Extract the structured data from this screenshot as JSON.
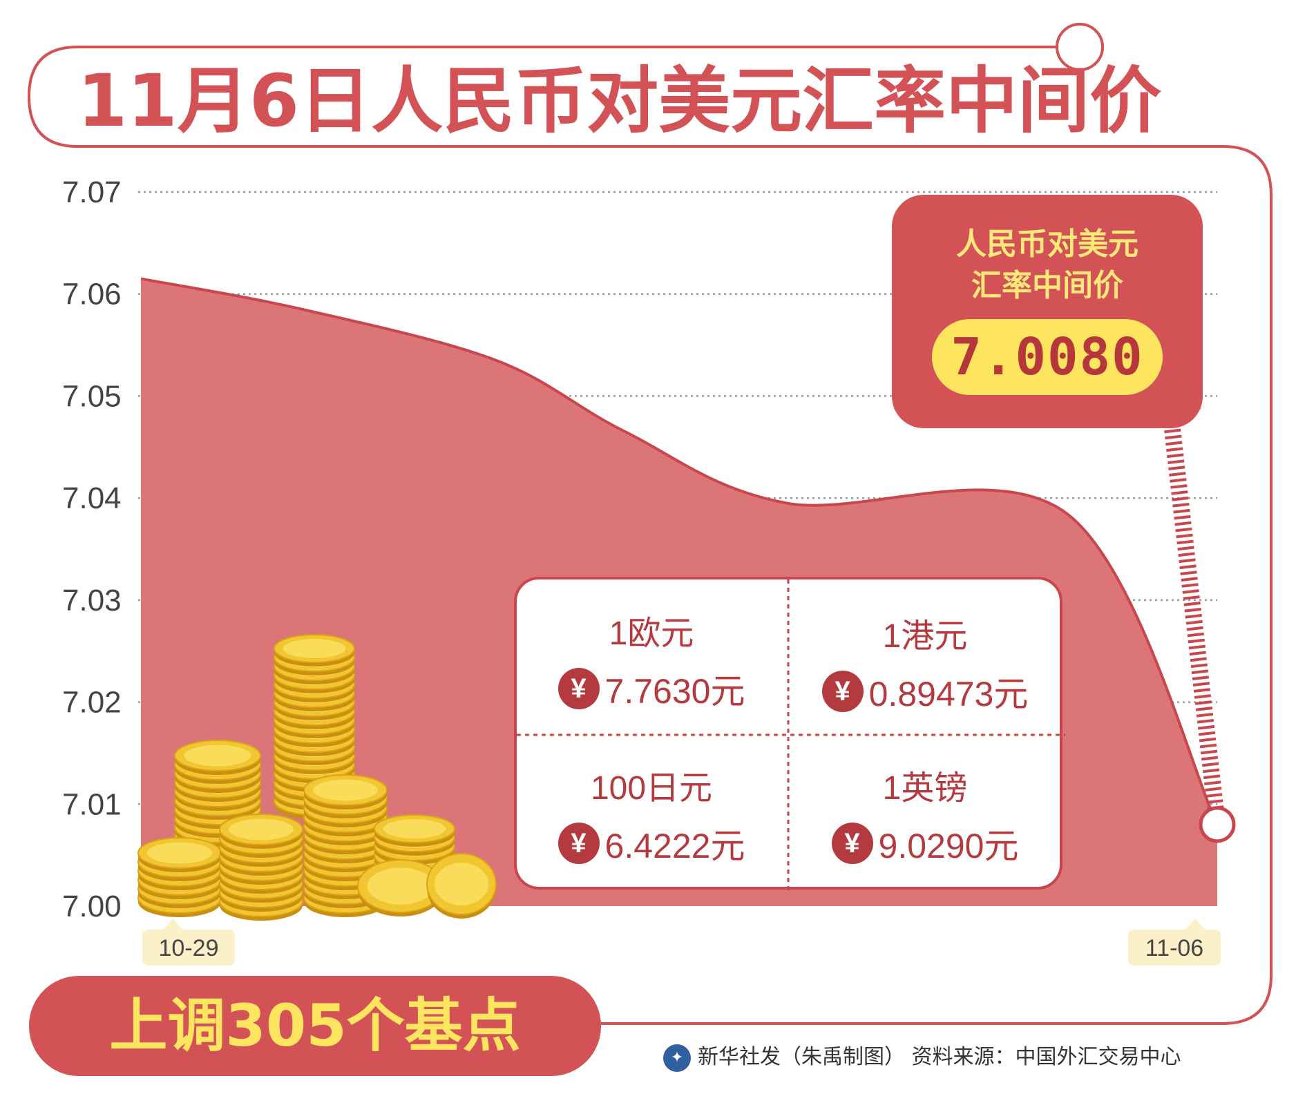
{
  "title": "11月6日人民币对美元汇率中间价",
  "callout": {
    "line1": "人民币对美元",
    "line2": "汇率中间价",
    "value": "7.0080"
  },
  "info_box": {
    "items": [
      {
        "currency": "1欧元",
        "rate": "7.7630元"
      },
      {
        "currency": "1港元",
        "rate": "0.89473元"
      },
      {
        "currency": "100日元",
        "rate": "6.4222元"
      },
      {
        "currency": "1英镑",
        "rate": "9.0290元"
      }
    ],
    "yen_symbol": "¥"
  },
  "banner": "上调305个基点",
  "credit": "新华社发（朱禹制图）  资料来源：中国外汇交易中心",
  "colors": {
    "accent": "#d35256",
    "area": "#db7577",
    "area_line": "#c9474c",
    "yellow": "#fde560",
    "gold": "#e9b520"
  },
  "chart_data": {
    "type": "area",
    "title": "11月6日人民币对美元汇率中间价",
    "x_labels": [
      "10-29",
      "11-06"
    ],
    "y_ticks": [
      "7.07",
      "7.06",
      "7.05",
      "7.04",
      "7.03",
      "7.02",
      "7.01",
      "7.00"
    ],
    "ylim": [
      7.0,
      7.07
    ],
    "grid": true,
    "series": [
      {
        "points": [
          {
            "t": 0.0,
            "y": 7.0615
          },
          {
            "t": 0.15,
            "y": 7.0585
          },
          {
            "t": 0.33,
            "y": 7.0535
          },
          {
            "t": 0.45,
            "y": 7.0465
          },
          {
            "t": 0.6,
            "y": 7.0395
          },
          {
            "t": 0.86,
            "y": 7.0385
          },
          {
            "t": 1.0,
            "y": 7.008
          }
        ]
      }
    ]
  }
}
